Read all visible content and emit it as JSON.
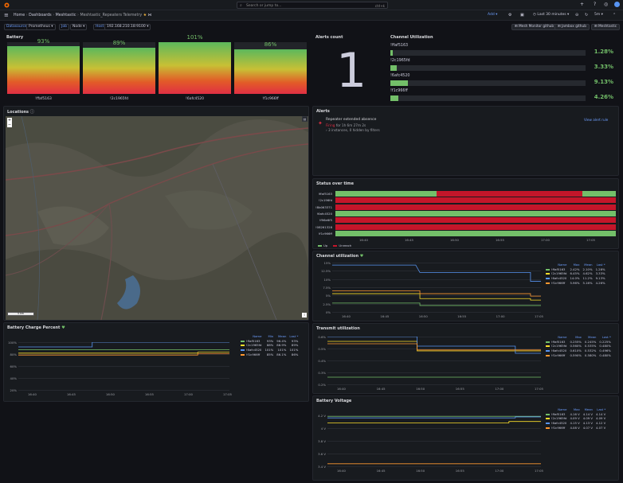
{
  "topbar": {
    "search_placeholder": "Search or jump to...",
    "search_shortcut": "ctrl+k"
  },
  "nav": {
    "crumbs": [
      "Home",
      "Dashboards",
      "Meshtastic",
      "Meshtastic_Repeaters Telemetry"
    ],
    "sep": "›",
    "time_range": "Last 30 minutes",
    "refresh": "5m",
    "add_label": "Add"
  },
  "vars": [
    {
      "label": "Datasource",
      "value": "Prometheus"
    },
    {
      "label": "Job",
      "value": "Node"
    },
    {
      "label": "Host",
      "value": "192.168.210.18:9100"
    }
  ],
  "links": [
    "Mesh Monitor github",
    "Jambox github",
    "Meshtastic"
  ],
  "battery": {
    "title": "Battery",
    "gauges": [
      {
        "label": "!ffaf5163",
        "value": "93%",
        "level": 93
      },
      {
        "label": "!2c1965fd",
        "value": "89%",
        "level": 89
      },
      {
        "label": "!6afc4520",
        "value": "101%",
        "level": 100
      },
      {
        "label": "!f1c966ff",
        "value": "86%",
        "level": 86
      }
    ]
  },
  "alerts_count": {
    "title": "Alerts count",
    "value": "1"
  },
  "channel_util": {
    "title": "Channel Utilization",
    "items": [
      {
        "label": "!ffaf5163",
        "value": "1.28%",
        "level": 1.28
      },
      {
        "label": "!2c1965fd",
        "value": "3.33%",
        "level": 3.33
      },
      {
        "label": "!6afc4520",
        "value": "9.13%",
        "level": 9.13
      },
      {
        "label": "!f1c966ff",
        "value": "4.26%",
        "level": 4.26
      }
    ]
  },
  "locations": {
    "title": "Locations",
    "zoom_in": "+",
    "zoom_out": "−",
    "scale": "5 km"
  },
  "alerts": {
    "title": "Alerts",
    "name": "Repeater extended absence",
    "state": "Firing",
    "duration": "for 1h 6m 27m 2s",
    "instances": "3 instances, 0 hidden by filters",
    "actions": "View alert rule"
  },
  "status_history": {
    "title": "Status over time",
    "rows": [
      "!ffaf5163",
      "!2c196fd",
      "!8b063371",
      "!6afc4520",
      "!f96e6f5",
      "!08261328",
      "!f1c966ff"
    ],
    "x_ticks": [
      "16:40",
      "16:45",
      "16:50",
      "16:55",
      "17:00",
      "17:05"
    ],
    "legend": [
      "Up",
      "Unreach"
    ],
    "colors": {
      "up": "#73bf69",
      "down": "#c4162a"
    }
  },
  "ch_util_ts": {
    "title": "Channel utilization",
    "y_ticks": [
      "15%",
      "12.5%",
      "10%",
      "7.5%",
      "5%",
      "2.5%",
      "0%"
    ],
    "x_ticks": [
      "16:40",
      "16:45",
      "16:50",
      "16:55",
      "17:00",
      "17:05"
    ],
    "legend_headers": [
      "Name",
      "Max",
      "Mean",
      "Last *"
    ],
    "rows": [
      {
        "name": "!ffaf5163",
        "max": "2.42%",
        "mean": "2.10%",
        "last": "1.28%",
        "color": "#73bf69"
      },
      {
        "name": "!2c1965fd",
        "max": "6.45%",
        "mean": "4.62%",
        "last": "3.33%",
        "color": "#fade2a"
      },
      {
        "name": "!6afc4520",
        "max": "14.0%",
        "mean": "11.2%",
        "last": "9.13%",
        "color": "#5794f2"
      },
      {
        "name": "!f1c966ff",
        "max": "5.96%",
        "mean": "5.16%",
        "last": "4.26%",
        "color": "#ff9830"
      }
    ]
  },
  "batt_charge": {
    "title": "Battery Charge Percent",
    "y_ticks": [
      "100%",
      "80%",
      "60%",
      "40%",
      "20%"
    ],
    "x_ticks": [
      "16:40",
      "16:45",
      "16:50",
      "16:55",
      "17:00",
      "17:05"
    ],
    "legend_headers": [
      "Name",
      "Min",
      "Mean",
      "Last *"
    ],
    "rows": [
      {
        "name": "!ffaf5163",
        "min": "93%",
        "mean": "96.4%",
        "last": "93%",
        "color": "#73bf69"
      },
      {
        "name": "!2c1965fd",
        "min": "88%",
        "mean": "88.9%",
        "last": "89%",
        "color": "#fade2a"
      },
      {
        "name": "!6afc4520",
        "min": "101%",
        "mean": "101%",
        "last": "101%",
        "color": "#5794f2"
      },
      {
        "name": "!f1c966ff",
        "min": "85%",
        "mean": "86.1%",
        "last": "86%",
        "color": "#ff9830"
      }
    ]
  },
  "tx_util": {
    "title": "Transmit utilization",
    "y_ticks": [
      "0.6%",
      "0.5%",
      "0.4%",
      "0.3%",
      "0.2%"
    ],
    "x_ticks": [
      "16:40",
      "16:45",
      "16:50",
      "16:55",
      "17:00",
      "17:05"
    ],
    "legend_headers": [
      "Name",
      "Max",
      "Mean",
      "Last *"
    ],
    "rows": [
      {
        "name": "!ffaf5163",
        "max": "0.255%",
        "mean": "0.245%",
        "last": "0.225%",
        "color": "#73bf69"
      },
      {
        "name": "!2c1965fd",
        "max": "0.560%",
        "mean": "0.535%",
        "last": "0.480%",
        "color": "#fade2a"
      },
      {
        "name": "!6afc4520",
        "max": "0.610%",
        "mean": "0.532%",
        "last": "0.496%",
        "color": "#5794f2"
      },
      {
        "name": "!f1c966ff",
        "max": "0.590%",
        "mean": "0.580%",
        "last": "0.480%",
        "color": "#ff9830"
      }
    ]
  },
  "batt_volt": {
    "title": "Battery Voltage",
    "y_ticks": [
      "4.2 V",
      "4 V",
      "3.8 V",
      "3.6 V",
      "3.4 V"
    ],
    "x_ticks": [
      "16:40",
      "16:45",
      "16:50",
      "16:55",
      "17:00",
      "17:05"
    ],
    "legend_headers": [
      "Name",
      "Max",
      "Mean",
      "Last *"
    ],
    "rows": [
      {
        "name": "!ffaf5163",
        "max": "4.16 V",
        "mean": "4.14 V",
        "last": "4.14 V",
        "color": "#73bf69"
      },
      {
        "name": "!2c1965fd",
        "max": "4.09 V",
        "mean": "4.09 V",
        "last": "4.09 V",
        "color": "#fade2a"
      },
      {
        "name": "!6afc4520",
        "max": "4.15 V",
        "mean": "4.13 V",
        "last": "4.12 V",
        "color": "#5794f2"
      },
      {
        "name": "!f1c966ff",
        "max": "4.08 V",
        "mean": "4.07 V",
        "last": "4.07 V",
        "color": "#ff9830"
      }
    ]
  }
}
